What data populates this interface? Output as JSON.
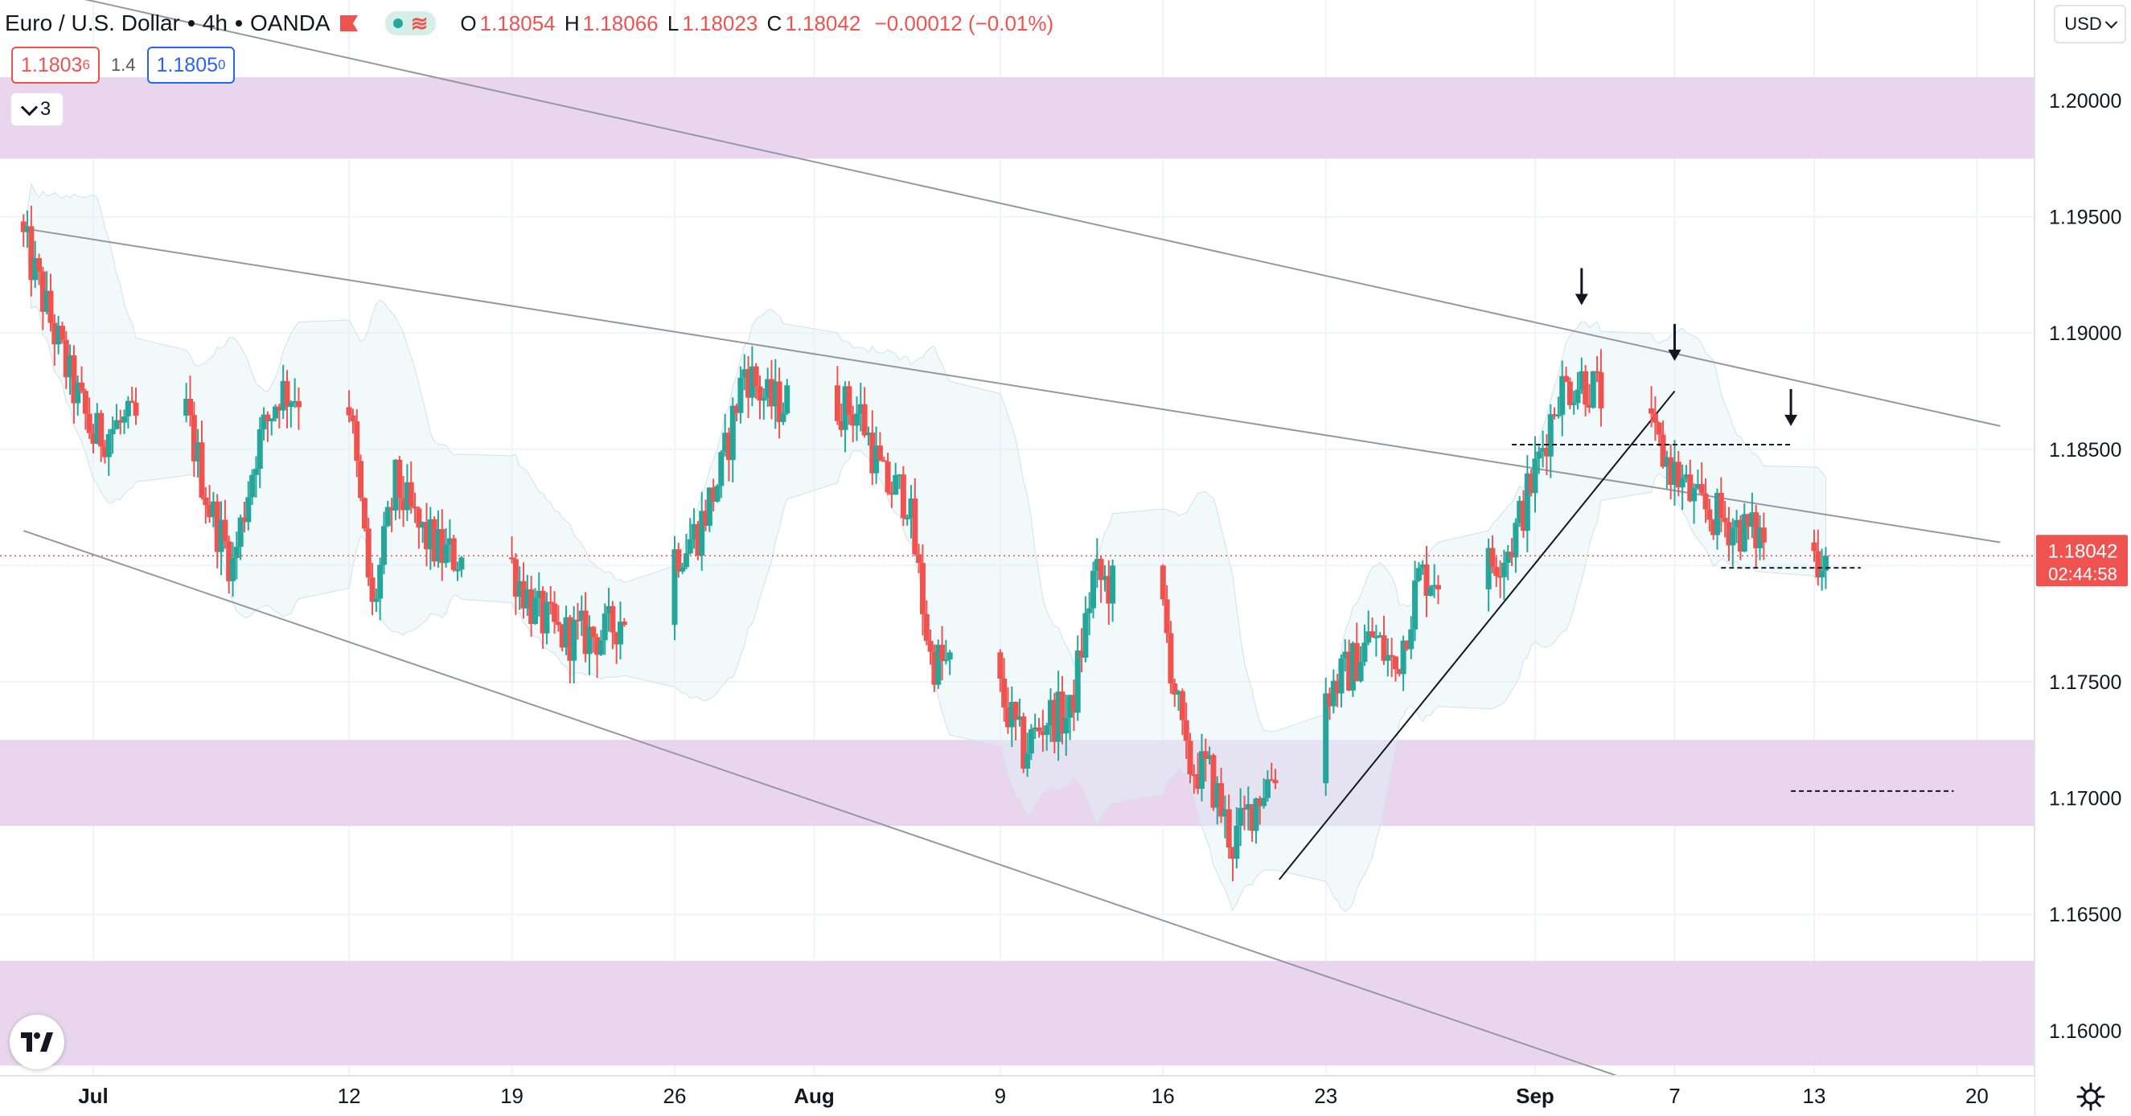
{
  "header": {
    "symbol_title": "Euro / U.S. Dollar",
    "interval": "4h",
    "exchange": "OANDA",
    "ohlc": {
      "o_label": "O",
      "o": "1.18054",
      "h_label": "H",
      "h": "1.18066",
      "l_label": "L",
      "l": "1.18023",
      "c_label": "C",
      "c": "1.18042",
      "change": "−0.00012 (−0.01%)"
    },
    "sell_price": "1.1803",
    "sell_sup": "6",
    "spread": "1.4",
    "buy_price": "1.1805",
    "buy_sup": "0",
    "layers_count": "3"
  },
  "currency_button": {
    "label": "USD"
  },
  "logo": {
    "text": "TV"
  },
  "colors": {
    "up": "#26a69a",
    "down": "#ef5350",
    "zone": "#e9d6ee",
    "band": "#dff1f6",
    "trendline": "#9598a1",
    "price_tag": "#ef5350"
  },
  "chart_data": {
    "type": "candlestick",
    "symbol": "EUR/USD",
    "interval": "4h",
    "grid": true,
    "y_axis": {
      "min": 1.1555,
      "max": 1.2035,
      "ticks": [
        "1.20000",
        "1.19500",
        "1.19000",
        "1.18500",
        "1.18000",
        "1.17500",
        "1.17000",
        "1.16500",
        "1.16000"
      ]
    },
    "x_axis": {
      "ticks": [
        {
          "label": "Jul",
          "date": "2021-07-01",
          "major": true
        },
        {
          "label": "12",
          "date": "2021-07-12"
        },
        {
          "label": "19",
          "date": "2021-07-19"
        },
        {
          "label": "26",
          "date": "2021-07-26"
        },
        {
          "label": "Aug",
          "date": "2021-08-01",
          "major": true
        },
        {
          "label": "9",
          "date": "2021-08-09"
        },
        {
          "label": "16",
          "date": "2021-08-16"
        },
        {
          "label": "23",
          "date": "2021-08-23"
        },
        {
          "label": "Sep",
          "date": "2021-09-01",
          "major": true
        },
        {
          "label": "7",
          "date": "2021-09-07"
        },
        {
          "label": "13",
          "date": "2021-09-13"
        },
        {
          "label": "20",
          "date": "2021-09-20"
        }
      ]
    },
    "last_price": "1.18042",
    "countdown": "02:44:58",
    "close_path": [
      [
        "2021-06-28",
        1.194
      ],
      [
        "2021-06-30",
        1.188
      ],
      [
        "2021-07-01",
        1.1855
      ],
      [
        "2021-07-02",
        1.186
      ],
      [
        "2021-07-05",
        1.1865
      ],
      [
        "2021-07-06",
        1.1825
      ],
      [
        "2021-07-07",
        1.18
      ],
      [
        "2021-07-08",
        1.185
      ],
      [
        "2021-07-09",
        1.1875
      ],
      [
        "2021-07-12",
        1.187
      ],
      [
        "2021-07-13",
        1.178
      ],
      [
        "2021-07-14",
        1.1835
      ],
      [
        "2021-07-15",
        1.1815
      ],
      [
        "2021-07-16",
        1.1805
      ],
      [
        "2021-07-19",
        1.18
      ],
      [
        "2021-07-20",
        1.178
      ],
      [
        "2021-07-21",
        1.177
      ],
      [
        "2021-07-22",
        1.177
      ],
      [
        "2021-07-23",
        1.177
      ],
      [
        "2021-07-26",
        1.1805
      ],
      [
        "2021-07-27",
        1.1815
      ],
      [
        "2021-07-28",
        1.184
      ],
      [
        "2021-07-29",
        1.1885
      ],
      [
        "2021-07-30",
        1.187
      ],
      [
        "2021-08-02",
        1.187
      ],
      [
        "2021-08-03",
        1.1865
      ],
      [
        "2021-08-04",
        1.1835
      ],
      [
        "2021-08-05",
        1.183
      ],
      [
        "2021-08-06",
        1.176
      ],
      [
        "2021-08-09",
        1.1745
      ],
      [
        "2021-08-10",
        1.172
      ],
      [
        "2021-08-11",
        1.1735
      ],
      [
        "2021-08-12",
        1.1735
      ],
      [
        "2021-08-13",
        1.1795
      ],
      [
        "2021-08-16",
        1.178
      ],
      [
        "2021-08-17",
        1.1715
      ],
      [
        "2021-08-18",
        1.171
      ],
      [
        "2021-08-19",
        1.168
      ],
      [
        "2021-08-20",
        1.17
      ],
      [
        "2021-08-23",
        1.1745
      ],
      [
        "2021-08-24",
        1.1755
      ],
      [
        "2021-08-25",
        1.177
      ],
      [
        "2021-08-26",
        1.1755
      ],
      [
        "2021-08-27",
        1.1795
      ],
      [
        "2021-08-30",
        1.18
      ],
      [
        "2021-08-31",
        1.181
      ],
      [
        "2021-09-01",
        1.184
      ],
      [
        "2021-09-02",
        1.1875
      ],
      [
        "2021-09-03",
        1.188
      ],
      [
        "2021-09-06",
        1.1855
      ],
      [
        "2021-09-07",
        1.184
      ],
      [
        "2021-09-08",
        1.1825
      ],
      [
        "2021-09-09",
        1.182
      ],
      [
        "2021-09-10",
        1.1815
      ],
      [
        "2021-09-13",
        1.18042
      ]
    ],
    "zones": [
      {
        "from": 1.1975,
        "to": 1.201
      },
      {
        "from": 1.1688,
        "to": 1.1725
      },
      {
        "from": 1.1585,
        "to": 1.163
      }
    ],
    "trendlines": [
      {
        "from": [
          "2021-06-21",
          1.2065
        ],
        "to": [
          "2021-09-21",
          1.186
        ]
      },
      {
        "from": [
          "2021-06-28",
          1.1945
        ],
        "to": [
          "2021-09-21",
          1.181
        ]
      },
      {
        "from": [
          "2021-06-28",
          1.1815
        ],
        "to": [
          "2021-09-12",
          1.1555
        ]
      },
      {
        "from": [
          "2021-08-21",
          1.1665
        ],
        "to": [
          "2021-09-07",
          1.1875
        ]
      }
    ],
    "horizontal_levels": [
      {
        "price": 1.1852,
        "from": "2021-08-31",
        "to": "2021-09-12"
      },
      {
        "price": 1.1799,
        "from": "2021-09-09",
        "to": "2021-09-15"
      },
      {
        "price": 1.1703,
        "from": "2021-09-12",
        "to": "2021-09-19"
      }
    ],
    "arrows": [
      {
        "date": "2021-09-03",
        "price": 1.1912
      },
      {
        "date": "2021-09-07",
        "price": 1.1888
      },
      {
        "date": "2021-09-12",
        "price": 1.186
      }
    ]
  }
}
